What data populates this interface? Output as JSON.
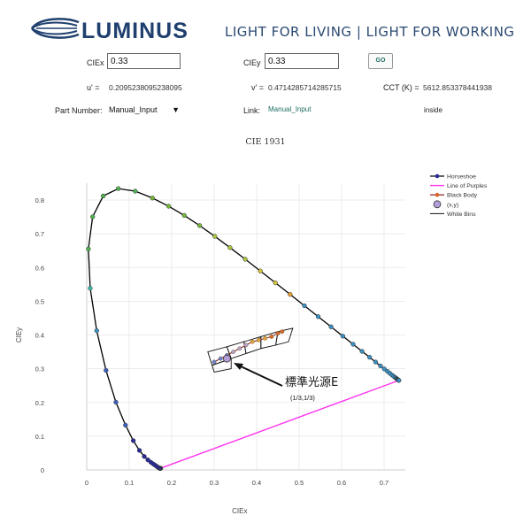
{
  "header": {
    "brand": "LUMINUS",
    "tagline": "LIGHT FOR LIVING | LIGHT FOR WORKING"
  },
  "form": {
    "ciex_label": "CIEx",
    "ciex_value": "0.33",
    "ciey_label": "CIEy",
    "ciey_value": "0.33",
    "go_label": "GO",
    "u_label": "u' =",
    "u_value": "0.2095238095238095",
    "v_label": "v' =",
    "v_value": "0.4714285714285715",
    "cct_label": "CCT (K) =",
    "cct_value": "5612.853378441938",
    "part_label": "Part Number:",
    "part_value": "Manual_Input",
    "link_label": "Link:",
    "link_value": "Manual_Input",
    "status": "inside"
  },
  "colors": {
    "horseshoe": "#000000",
    "line_of_purples": "#ff33ee",
    "black_body": "#8b1a1a",
    "point_fill": "#b39ddb",
    "brand": "#1f3f6e",
    "link": "#1f6e62"
  },
  "chart_data": {
    "type": "scatter",
    "title": "CIE 1931",
    "xlabel": "CIEx",
    "ylabel": "CIEy",
    "xlim": [
      0,
      0.75
    ],
    "ylim": [
      0,
      0.85
    ],
    "xticks": [
      "0",
      "0.1",
      "0.2",
      "0.3",
      "0.4",
      "0.5",
      "0.6",
      "0.7"
    ],
    "yticks": [
      "0",
      "0.1",
      "0.2",
      "0.3",
      "0.4",
      "0.5",
      "0.6",
      "0.7",
      "0.8"
    ],
    "grid": true,
    "legend_position": "top-right",
    "legend": [
      "Horseshoe",
      "Line of Purples",
      "Black Body",
      "(x,y)",
      "White Bins"
    ],
    "series": [
      {
        "name": "Horseshoe",
        "points": [
          [
            0.1741,
            0.005
          ],
          [
            0.1738,
            0.0049
          ],
          [
            0.1736,
            0.0049
          ],
          [
            0.1733,
            0.0048
          ],
          [
            0.173,
            0.0048
          ],
          [
            0.1726,
            0.0048
          ],
          [
            0.1721,
            0.0048
          ],
          [
            0.1714,
            0.0051
          ],
          [
            0.1703,
            0.0058
          ],
          [
            0.1689,
            0.0069
          ],
          [
            0.1669,
            0.0086
          ],
          [
            0.1644,
            0.0109
          ],
          [
            0.1611,
            0.0138
          ],
          [
            0.1566,
            0.0177
          ],
          [
            0.151,
            0.0227
          ],
          [
            0.144,
            0.0297
          ],
          [
            0.1355,
            0.0399
          ],
          [
            0.1241,
            0.0578
          ],
          [
            0.1096,
            0.0868
          ],
          [
            0.0913,
            0.1327
          ],
          [
            0.0687,
            0.2007
          ],
          [
            0.0454,
            0.295
          ],
          [
            0.0235,
            0.4127
          ],
          [
            0.0082,
            0.5384
          ],
          [
            0.0039,
            0.6548
          ],
          [
            0.0139,
            0.7502
          ],
          [
            0.0389,
            0.812
          ],
          [
            0.0743,
            0.8338
          ],
          [
            0.1142,
            0.8262
          ],
          [
            0.1547,
            0.8059
          ],
          [
            0.1929,
            0.7816
          ],
          [
            0.2296,
            0.7543
          ],
          [
            0.2658,
            0.7243
          ],
          [
            0.3016,
            0.6923
          ],
          [
            0.3373,
            0.6589
          ],
          [
            0.3731,
            0.6245
          ],
          [
            0.4087,
            0.5896
          ],
          [
            0.4441,
            0.5547
          ],
          [
            0.4788,
            0.5202
          ],
          [
            0.5125,
            0.4866
          ],
          [
            0.5448,
            0.4544
          ],
          [
            0.5752,
            0.4242
          ],
          [
            0.6029,
            0.3965
          ],
          [
            0.627,
            0.3725
          ],
          [
            0.6482,
            0.3514
          ],
          [
            0.6658,
            0.334
          ],
          [
            0.6801,
            0.3197
          ],
          [
            0.6915,
            0.3083
          ],
          [
            0.7006,
            0.2993
          ],
          [
            0.7079,
            0.292
          ],
          [
            0.714,
            0.2859
          ],
          [
            0.719,
            0.2809
          ],
          [
            0.723,
            0.277
          ],
          [
            0.726,
            0.274
          ],
          [
            0.7283,
            0.2717
          ],
          [
            0.73,
            0.27
          ],
          [
            0.7311,
            0.2689
          ],
          [
            0.732,
            0.268
          ],
          [
            0.7327,
            0.2673
          ],
          [
            0.7334,
            0.2666
          ],
          [
            0.734,
            0.266
          ],
          [
            0.7344,
            0.2656
          ],
          [
            0.7346,
            0.2654
          ],
          [
            0.7347,
            0.2653
          ]
        ]
      },
      {
        "name": "Line of Purples",
        "points": [
          [
            0.1741,
            0.005
          ],
          [
            0.7347,
            0.2653
          ]
        ]
      },
      {
        "name": "Black Body",
        "points": [
          [
            0.3,
            0.32
          ],
          [
            0.315,
            0.33
          ],
          [
            0.33,
            0.34
          ],
          [
            0.345,
            0.35
          ],
          [
            0.36,
            0.36
          ],
          [
            0.375,
            0.37
          ],
          [
            0.39,
            0.38
          ],
          [
            0.405,
            0.385
          ],
          [
            0.42,
            0.39
          ],
          [
            0.435,
            0.395
          ],
          [
            0.45,
            0.405
          ],
          [
            0.46,
            0.41
          ]
        ]
      },
      {
        "name": "(x,y)",
        "points": [
          [
            0.33,
            0.33
          ]
        ]
      },
      {
        "name": "White Bins",
        "polygons": [
          [
            [
              0.285,
              0.35
            ],
            [
              0.33,
              0.365
            ],
            [
              0.34,
              0.33
            ],
            [
              0.295,
              0.31
            ]
          ],
          [
            [
              0.33,
              0.365
            ],
            [
              0.37,
              0.38
            ],
            [
              0.375,
              0.345
            ],
            [
              0.34,
              0.33
            ]
          ],
          [
            [
              0.37,
              0.38
            ],
            [
              0.41,
              0.395
            ],
            [
              0.41,
              0.36
            ],
            [
              0.375,
              0.345
            ]
          ],
          [
            [
              0.41,
              0.395
            ],
            [
              0.45,
              0.41
            ],
            [
              0.445,
              0.37
            ],
            [
              0.41,
              0.36
            ]
          ],
          [
            [
              0.45,
              0.41
            ],
            [
              0.485,
              0.42
            ],
            [
              0.475,
              0.38
            ],
            [
              0.445,
              0.37
            ]
          ],
          [
            [
              0.295,
              0.31
            ],
            [
              0.34,
              0.33
            ],
            [
              0.34,
              0.3
            ],
            [
              0.3,
              0.29
            ]
          ]
        ]
      }
    ],
    "annotation": {
      "text": "標準光源E",
      "subtext": "(1/3,1/3)",
      "x": 0.46,
      "y": 0.265,
      "arrow_to": [
        0.335,
        0.325
      ]
    }
  }
}
